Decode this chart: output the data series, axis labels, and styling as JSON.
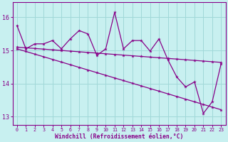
{
  "xlabel": "Windchill (Refroidissement éolien,°C)",
  "background_color": "#c8f0f0",
  "grid_color": "#a0d8d8",
  "line_color": "#880088",
  "x_hours": [
    0,
    1,
    2,
    3,
    4,
    5,
    6,
    7,
    8,
    9,
    10,
    11,
    12,
    13,
    14,
    15,
    16,
    17,
    18,
    19,
    20,
    21,
    22,
    23
  ],
  "series_zigzag": [
    15.75,
    15.05,
    15.2,
    15.2,
    15.3,
    15.05,
    15.35,
    15.6,
    15.5,
    14.85,
    15.05,
    16.15,
    15.05,
    15.3,
    15.3,
    14.98,
    15.35,
    14.72,
    14.2,
    13.9,
    14.05,
    13.1,
    13.45,
    14.6
  ],
  "series_upper": [
    15.1,
    15.08,
    15.06,
    15.04,
    15.02,
    15.0,
    14.98,
    14.96,
    14.94,
    14.92,
    14.9,
    14.88,
    14.86,
    14.84,
    14.82,
    14.8,
    14.78,
    14.76,
    14.74,
    14.72,
    14.7,
    14.68,
    14.66,
    14.64
  ],
  "series_lower": [
    15.05,
    14.97,
    14.89,
    14.81,
    14.73,
    14.65,
    14.57,
    14.49,
    14.41,
    14.33,
    14.25,
    14.17,
    14.09,
    14.01,
    13.93,
    13.85,
    13.77,
    13.69,
    13.61,
    13.53,
    13.45,
    13.37,
    13.29,
    13.21
  ],
  "ylim": [
    12.75,
    16.45
  ],
  "yticks": [
    13,
    14,
    15,
    16
  ],
  "xticks": [
    0,
    1,
    2,
    3,
    4,
    5,
    6,
    7,
    8,
    9,
    10,
    11,
    12,
    13,
    14,
    15,
    16,
    17,
    18,
    19,
    20,
    21,
    22,
    23
  ]
}
